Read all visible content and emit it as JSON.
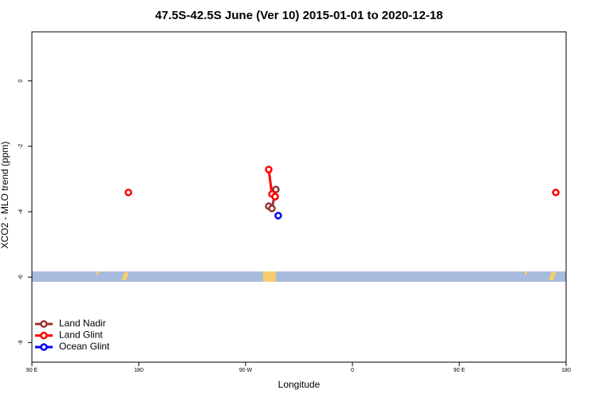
{
  "chart_data": {
    "type": "line",
    "title": "47.5S-42.5S June (Ver 10)   2015-01-01 to 2020-12-18",
    "x_label": "Longitude",
    "y_label": "XCO2 - MLO trend (ppm)",
    "xlim": [
      90,
      540
    ],
    "ylim": [
      -8.6,
      1.5
    ],
    "xticks": [
      {
        "value": 90,
        "label": "90 E"
      },
      180,
      {
        "value": 270,
        "label": "90 W"
      },
      {
        "value": 360,
        "label": "0"
      },
      {
        "value": 450,
        "label": "90 E"
      },
      {
        "value": 540,
        "label": "180"
      }
    ],
    "yticks": [
      0,
      -2,
      -4,
      -6,
      -8
    ],
    "legend": "bottom-left",
    "series": [
      {
        "name": "Land Nadir",
        "color": "#993333",
        "x": [
          289.5,
          292.2,
          295.5
        ],
        "values": [
          -3.83,
          -3.9,
          -3.32
        ]
      },
      {
        "name": "Land Glint",
        "color": "#ff0000",
        "x": [
          171.3,
          null,
          289.5,
          292.2,
          294.9,
          null,
          531.3
        ],
        "values": [
          -3.41,
          null,
          -2.71,
          -3.46,
          -3.54,
          null,
          -3.41
        ]
      },
      {
        "name": "Ocean Glint",
        "color": "#0000ff",
        "x": [
          297.5
        ],
        "values": [
          -4.12
        ]
      }
    ]
  }
}
